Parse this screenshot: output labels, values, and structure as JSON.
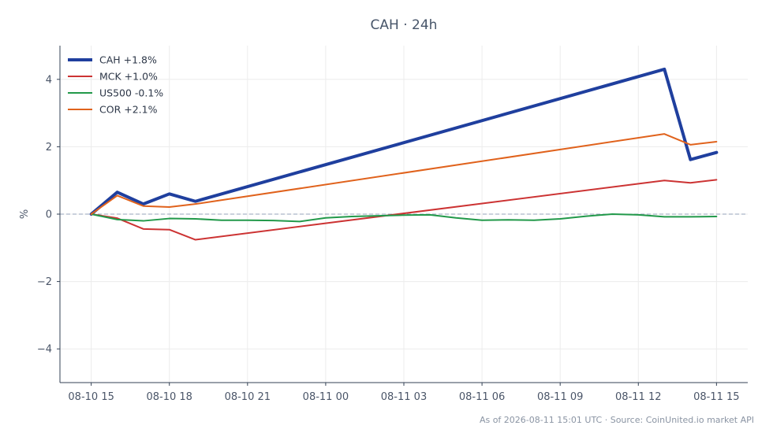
{
  "chart_data": {
    "type": "line",
    "title": "CAH · 24h",
    "xlabel": "",
    "ylabel": "%",
    "x_tick_labels": [
      "08-10 15",
      "08-10 18",
      "08-10 21",
      "08-11 00",
      "08-11 03",
      "08-11 06",
      "08-11 09",
      "08-11 12",
      "08-11 15"
    ],
    "x_tick_hours": [
      0,
      3,
      6,
      9,
      12,
      15,
      18,
      21,
      24
    ],
    "xlim": [
      -1.2,
      25.2
    ],
    "ylim": [
      -5,
      5
    ],
    "y_ticks": [
      4,
      2,
      0,
      -2,
      -4
    ],
    "y_tick_labels": [
      "4",
      "2",
      "0",
      "−2",
      "−4"
    ],
    "zero_line": true,
    "grid": true,
    "legend_position": "top-left",
    "series": [
      {
        "name": "CAH +1.8%",
        "color": "#1f3f9e",
        "bold": true,
        "x": [
          0,
          1,
          2,
          3,
          4,
          22,
          23,
          24
        ],
        "y": [
          0,
          0.65,
          0.3,
          0.6,
          0.38,
          4.3,
          1.62,
          1.83
        ]
      },
      {
        "name": "MCK +1.0%",
        "color": "#cc3333",
        "x": [
          0,
          1,
          2,
          3,
          4,
          22,
          23,
          24
        ],
        "y": [
          0,
          -0.12,
          -0.44,
          -0.46,
          -0.76,
          1.0,
          0.93,
          1.02
        ]
      },
      {
        "name": "US500 -0.1%",
        "color": "#22994a",
        "x": [
          0,
          1,
          2,
          3,
          4,
          5,
          6,
          7,
          8,
          9,
          10,
          11,
          12,
          13,
          14,
          15,
          16,
          17,
          18,
          19,
          20,
          21,
          22,
          23,
          24
        ],
        "y": [
          0,
          -0.16,
          -0.2,
          -0.13,
          -0.14,
          -0.18,
          -0.18,
          -0.19,
          -0.22,
          -0.11,
          -0.07,
          -0.05,
          -0.03,
          -0.02,
          -0.11,
          -0.18,
          -0.17,
          -0.18,
          -0.14,
          -0.06,
          0.0,
          -0.02,
          -0.08,
          -0.08,
          -0.07
        ]
      },
      {
        "name": "COR +2.1%",
        "color": "#e0621c",
        "x": [
          0,
          1,
          2,
          3,
          4,
          22,
          23,
          24
        ],
        "y": [
          0,
          0.55,
          0.24,
          0.21,
          0.3,
          2.38,
          2.06,
          2.15
        ]
      }
    ]
  },
  "footer": {
    "text": "As of 2026-08-11 15:01 UTC · Source: CoinUnited.io market API"
  },
  "colors": {
    "axis": "#334155",
    "grid": "#ececec",
    "zero_line": "#94a3b8"
  }
}
